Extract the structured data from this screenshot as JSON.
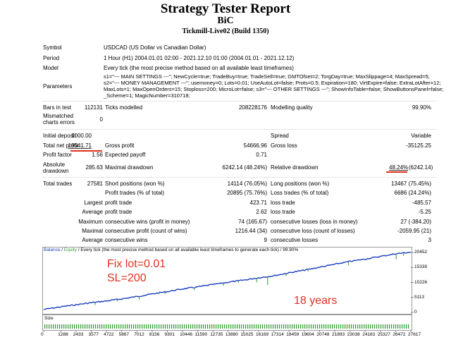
{
  "header": {
    "title": "Strategy Tester Report",
    "subtitle": "BiC",
    "server": "Tickmill-Live02 (Build 1350)"
  },
  "info": {
    "symbol_label": "Symbol",
    "symbol_value": "USDCAD (US Dollar vs Canadian Dollar)",
    "period_label": "Period",
    "period_value": "1 Hour (H1) 2004.01.01 02:00 - 2021.12.10 01:00 (2004.01.01 - 2021.12.12)",
    "model_label": "Model",
    "model_value": "Every tick (the most precise method based on all available least timeframes)",
    "params_label": "Parameters",
    "params_line1": "s1=\"--- MAIN SETTINGS ---\"; NewCycle=true; TradeBuy=true; TradeSell=true; GMTOfset=2; TorgDay=true; MaxSlippage=4; MaxSpread=5;",
    "params_line2": "s2=\"--- MONEY MANAGEMENT ---\"; usemoney=0; Lots=0.01; UseAutoLot=false; Prots=0.5; Expiration=180; VirtExpire=false; ExtraLotAfter=12;",
    "params_line3": "MaxLots=1; MaxOpenOrders=15; Stoploss=200; MicroLot=false; s3=\"--- OTHER SETTINGS ---\"; ShowInfoTable=false; ShowButtonsPanel=false;",
    "params_line4": "_Scheme=1; MagicNumber=310718;"
  },
  "stats": {
    "bars_label": "Bars in test",
    "bars_value": "112131",
    "ticks_label": "Ticks modelled",
    "ticks_value": "208228176",
    "quality_label": "Modelling quality",
    "quality_value": "99.90%",
    "mismatch_label1": "Mismatched",
    "mismatch_label2": "charts errors",
    "mismatch_value": "0",
    "deposit_label": "Initial deposit",
    "deposit_value": "1000.00",
    "spread_label": "Spread",
    "spread_value": "Variable",
    "netprofit_label": "Total net profit",
    "netprofit_value": "19541.71",
    "grossprofit_label": "Gross profit",
    "grossprofit_value": "54666.96",
    "grossloss_label": "Gross loss",
    "grossloss_value": "-35125.25",
    "pf_label": "Profit factor",
    "pf_value": "1.56",
    "payoff_label": "Expected payoff",
    "payoff_value": "0.71",
    "absdd_label1": "Absolute",
    "absdd_label2": "drawdown",
    "absdd_value": "285.63",
    "maxdd_label": "Maximal drawdown",
    "maxdd_value": "6242.14 (48.24%)",
    "reldd_label": "Relative drawdown",
    "reldd_value1": "48.24%",
    "reldd_value2": "(6242.14)",
    "trades_label": "Total trades",
    "trades_value": "27581",
    "short_label": "Short positions (won %)",
    "short_value": "14114 (76.05%)",
    "long_label": "Long positions (won %)",
    "long_value": "13467 (75.45%)",
    "ptrades_label": "Profit trades (% of total)",
    "ptrades_value": "20895 (75.76%)",
    "ltrades_label": "Loss trades (% of total)",
    "ltrades_value": "6686 (24.24%)",
    "largest_label": "Largest",
    "avg_label": "Average",
    "max_label": "Maximum",
    "maximal_label": "Maximal",
    "profit_trade_label": "profit trade",
    "loss_trade_label": "loss trade",
    "lp_value": "423.71",
    "ll_value": "-485.57",
    "ap_value": "2.62",
    "al_value": "-5.25",
    "cw_money_label": "consecutive wins (profit in money)",
    "cw_money_value": "74 (165.67)",
    "cl_money_label": "consecutive losses (loss in money)",
    "cl_money_value": "27 (-384.20)",
    "cp_count_label": "consecutive profit (count of wins)",
    "cp_count_value": "1216.44 (34)",
    "cls_count_label": "consecutive loss (count of losses)",
    "cls_count_value": "-2059.95 (21)",
    "avg_cw_label": "consecutive wins",
    "avg_cw_value": "9",
    "avg_cl_label": "consecutive losses",
    "avg_cl_value": "3"
  },
  "chart_legend": {
    "balance": "Balance",
    "sep": " / ",
    "equity": "Equity",
    "rest": " / Every tick (the most precise method based on all available least timeframes to generate each tick) / 99.90%"
  },
  "annotations": {
    "fix_lot": "Fix lot=0.01",
    "sl": "SL=200",
    "years": "18 years"
  },
  "size_label": "Size",
  "colors": {
    "balance": "#1a3dbf",
    "equity": "#2e9a2e",
    "annotation": "#e0301e",
    "underline": "#e0301e"
  },
  "chart_data": {
    "type": "line",
    "title": "",
    "xlabel": "",
    "ylabel": "",
    "y_ticks": [
      "20452",
      "15339",
      "10226",
      "5113",
      "0"
    ],
    "x_ticks": [
      "0",
      "1288",
      "2433",
      "3577",
      "4722",
      "5867",
      "7012",
      "8156",
      "9301",
      "10446",
      "11590",
      "12735",
      "13880",
      "15025",
      "16169",
      "17314",
      "18459",
      "19604",
      "20748",
      "21893",
      "23038",
      "24183",
      "25327",
      "26472",
      "27617"
    ],
    "ylim": [
      0,
      20452
    ],
    "xlim": [
      0,
      27617
    ],
    "series": [
      {
        "name": "Balance",
        "x": [
          0,
          1288,
          2433,
          3577,
          4722,
          5867,
          7012,
          8156,
          9301,
          10446,
          11590,
          12735,
          13880,
          15025,
          16169,
          17314,
          18459,
          19604,
          20748,
          21893,
          23038,
          24183,
          25327,
          26472,
          27617
        ],
        "values": [
          1000,
          1900,
          2600,
          3300,
          3900,
          4600,
          5400,
          6300,
          7100,
          8000,
          8700,
          9500,
          10300,
          11000,
          11800,
          12500,
          13500,
          14400,
          15400,
          16400,
          17400,
          18200,
          19100,
          20000,
          20542
        ]
      }
    ]
  }
}
